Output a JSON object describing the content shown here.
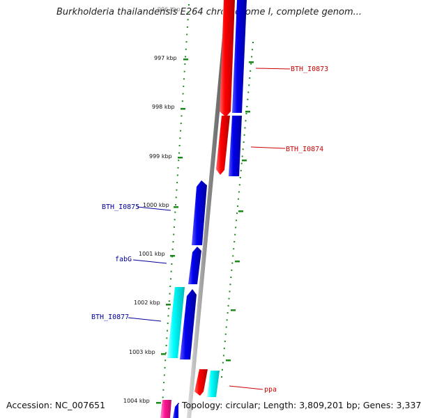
{
  "title": "Burkholderia thailandensis E264 chromosome I, complete genom...",
  "footer": {
    "accession": "Accession: NC_007651",
    "summary": "Topology: circular; Length: 3,809,201 bp; Genes: 3,337"
  },
  "scale": {
    "top_label_partial": "996 kbp",
    "ticks": [
      "997 kbp",
      "998 kbp",
      "999 kbp",
      "1000 kbp",
      "1001 kbp",
      "1002 kbp",
      "1003 kbp",
      "1004 kbp"
    ]
  },
  "genes": [
    {
      "label": "BTH_I0873",
      "strand": "forward",
      "color": "#e00000"
    },
    {
      "label": "BTH_I0874",
      "strand": "forward",
      "color": "#e00000"
    },
    {
      "label": "BTH_I0875",
      "strand": "reverse",
      "color": "#000099"
    },
    {
      "label": "fabG",
      "strand": "reverse",
      "color": "#000099"
    },
    {
      "label": "BTH_I0877",
      "strand": "reverse",
      "color": "#000099"
    },
    {
      "label": "ppa",
      "strand": "forward",
      "color": "#e00000"
    }
  ],
  "colors": {
    "forward_gene": "#ff0000",
    "reverse_gene": "#0000ee",
    "forward_rna": "#00ffff",
    "other_feature": "#ff1493",
    "backbone": "#888888",
    "gc_dots": "#1a8a1a",
    "forward_label": "#cc0000",
    "reverse_label": "#000099"
  }
}
